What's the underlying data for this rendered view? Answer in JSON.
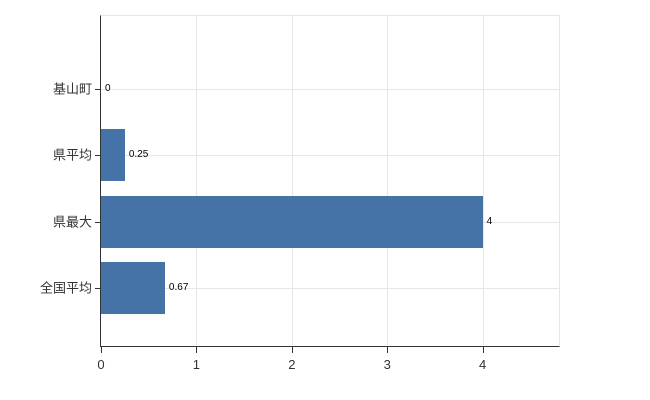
{
  "chart_data": {
    "type": "bar",
    "orientation": "horizontal",
    "title": "",
    "xlabel": "",
    "ylabel": "",
    "categories": [
      "基山町",
      "県平均",
      "県最大",
      "全国平均"
    ],
    "values": [
      0,
      0.25,
      4,
      0.67
    ],
    "value_labels": [
      "0",
      "0.25",
      "4",
      "0.67"
    ],
    "x_ticks": [
      0,
      1,
      2,
      3,
      4
    ],
    "x_tick_labels": [
      "0",
      "1",
      "2",
      "3",
      "4"
    ],
    "xlim": [
      0,
      4.8
    ],
    "grid": true,
    "legend": false,
    "bar_color": "#4572a7",
    "grid_color": "#e6e6e6",
    "axis_color": "#333333",
    "tick_label_color": "#333333",
    "value_label_color": "#000000",
    "background_color": "#ffffff"
  }
}
